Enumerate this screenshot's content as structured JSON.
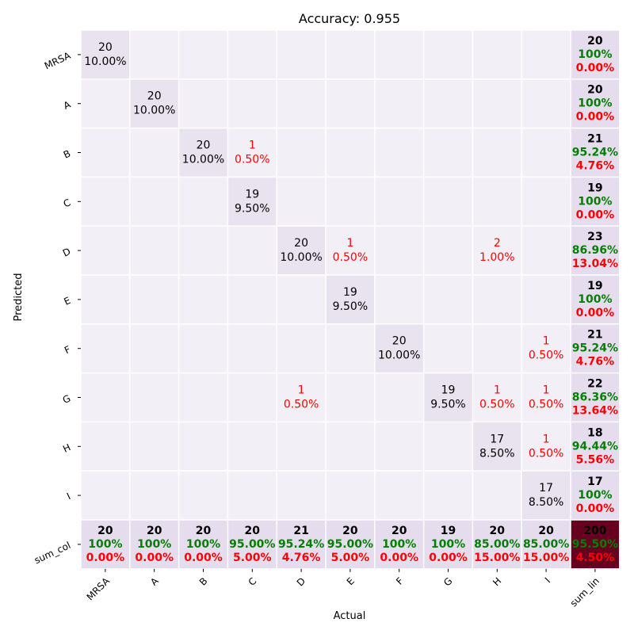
{
  "chart_data": {
    "type": "heatmap",
    "title": "Accuracy: 0.955",
    "xlabel": "Actual",
    "ylabel": "Predicted",
    "x_categories": [
      "MRSA",
      "A",
      "B",
      "C",
      "D",
      "E",
      "F",
      "G",
      "H",
      "I",
      "sum_lin"
    ],
    "y_categories": [
      "MRSA",
      "A",
      "B",
      "C",
      "D",
      "E",
      "F",
      "G",
      "H",
      "I",
      "sum_col"
    ],
    "matrix": [
      [
        20,
        0,
        0,
        0,
        0,
        0,
        0,
        0,
        0,
        0
      ],
      [
        0,
        20,
        0,
        0,
        0,
        0,
        0,
        0,
        0,
        0
      ],
      [
        0,
        0,
        20,
        1,
        0,
        0,
        0,
        0,
        0,
        0
      ],
      [
        0,
        0,
        0,
        19,
        0,
        0,
        0,
        0,
        0,
        0
      ],
      [
        0,
        0,
        0,
        0,
        20,
        1,
        0,
        0,
        2,
        0
      ],
      [
        0,
        0,
        0,
        0,
        0,
        19,
        0,
        0,
        0,
        0
      ],
      [
        0,
        0,
        0,
        0,
        0,
        0,
        20,
        0,
        0,
        1
      ],
      [
        0,
        0,
        0,
        0,
        1,
        0,
        0,
        19,
        1,
        1
      ],
      [
        0,
        0,
        0,
        0,
        0,
        0,
        0,
        0,
        17,
        1
      ],
      [
        0,
        0,
        0,
        0,
        0,
        0,
        0,
        0,
        0,
        17
      ]
    ],
    "cell_percent_labels": [
      [
        "10.00%",
        "",
        "",
        "",
        "",
        "",
        "",
        "",
        "",
        ""
      ],
      [
        "",
        "10.00%",
        "",
        "",
        "",
        "",
        "",
        "",
        "",
        ""
      ],
      [
        "",
        "",
        "10.00%",
        "0.50%",
        "",
        "",
        "",
        "",
        "",
        ""
      ],
      [
        "",
        "",
        "",
        "9.50%",
        "",
        "",
        "",
        "",
        "",
        ""
      ],
      [
        "",
        "",
        "",
        "",
        "10.00%",
        "0.50%",
        "",
        "",
        "1.00%",
        ""
      ],
      [
        "",
        "",
        "",
        "",
        "",
        "9.50%",
        "",
        "",
        "",
        ""
      ],
      [
        "",
        "",
        "",
        "",
        "",
        "",
        "10.00%",
        "",
        "",
        "0.50%"
      ],
      [
        "",
        "",
        "",
        "",
        "0.50%",
        "",
        "",
        "9.50%",
        "0.50%",
        "0.50%"
      ],
      [
        "",
        "",
        "",
        "",
        "",
        "",
        "",
        "",
        "8.50%",
        "0.50%"
      ],
      [
        "",
        "",
        "",
        "",
        "",
        "",
        "",
        "",
        "",
        "8.50%"
      ]
    ],
    "row_totals": [
      {
        "count": "20",
        "correct": "100%",
        "error": "0.00%"
      },
      {
        "count": "20",
        "correct": "100%",
        "error": "0.00%"
      },
      {
        "count": "21",
        "correct": "95.24%",
        "error": "4.76%"
      },
      {
        "count": "19",
        "correct": "100%",
        "error": "0.00%"
      },
      {
        "count": "23",
        "correct": "86.96%",
        "error": "13.04%"
      },
      {
        "count": "19",
        "correct": "100%",
        "error": "0.00%"
      },
      {
        "count": "21",
        "correct": "95.24%",
        "error": "4.76%"
      },
      {
        "count": "22",
        "correct": "86.36%",
        "error": "13.64%"
      },
      {
        "count": "18",
        "correct": "94.44%",
        "error": "5.56%"
      },
      {
        "count": "17",
        "correct": "100%",
        "error": "0.00%"
      }
    ],
    "col_totals": [
      {
        "count": "20",
        "correct": "100%",
        "error": "0.00%"
      },
      {
        "count": "20",
        "correct": "100%",
        "error": "0.00%"
      },
      {
        "count": "20",
        "correct": "100%",
        "error": "0.00%"
      },
      {
        "count": "20",
        "correct": "95.00%",
        "error": "5.00%"
      },
      {
        "count": "21",
        "correct": "95.24%",
        "error": "4.76%"
      },
      {
        "count": "20",
        "correct": "95.00%",
        "error": "5.00%"
      },
      {
        "count": "20",
        "correct": "100%",
        "error": "0.00%"
      },
      {
        "count": "19",
        "correct": "100%",
        "error": "0.00%"
      },
      {
        "count": "20",
        "correct": "85.00%",
        "error": "15.00%"
      },
      {
        "count": "20",
        "correct": "85.00%",
        "error": "15.00%"
      }
    ],
    "grand_total": {
      "count": "200",
      "correct": "95.50%",
      "error": "4.50%"
    },
    "colors": {
      "background_cell": "#f3eff6",
      "diagonal_cell": "#e9e2ef",
      "total_cell": "#e5dced",
      "grand_total_cell": "#67001f",
      "correct_text": "#008000",
      "error_text": "#ff0000",
      "normal_text": "#000000",
      "separator": "#ffffff"
    },
    "grid": false,
    "legend": "none"
  }
}
